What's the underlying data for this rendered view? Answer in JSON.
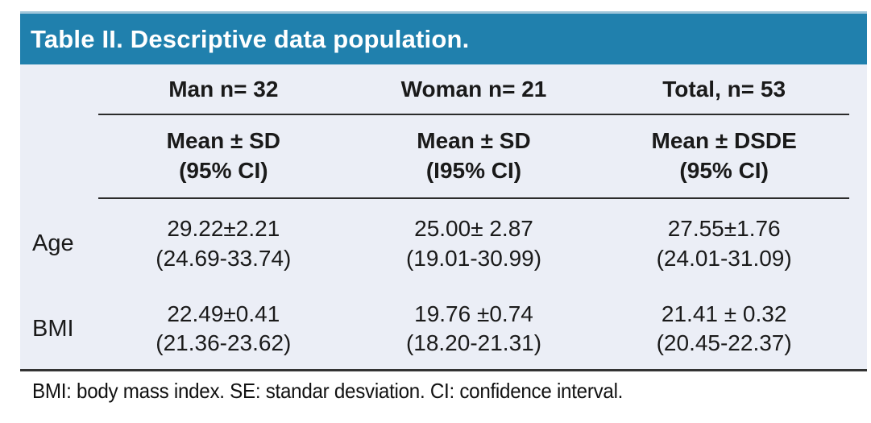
{
  "title": "Table II. Descriptive data population.",
  "colors": {
    "header_bg": "#2080AD",
    "header_text": "#FFFFFF",
    "body_bg": "#EBEEF6",
    "text": "#1A1A1A",
    "rule": "#2B2B2B"
  },
  "chart_data": {
    "type": "table",
    "title": "Table II. Descriptive data population.",
    "group_headers": [
      "Man n= 32",
      "Woman n= 21",
      "Total, n= 53"
    ],
    "sub_headers": [
      {
        "line1": "Mean ± SD",
        "line2": "(95% CI)"
      },
      {
        "line1": "Mean ± SD",
        "line2": "(I95% CI)"
      },
      {
        "line1": "Mean ± DSDE",
        "line2": "(95% CI)"
      }
    ],
    "rows": [
      {
        "label": "Age",
        "man": {
          "mean": "29.22±2.21",
          "ci": "(24.69-33.74)"
        },
        "woman": {
          "mean": "25.00± 2.87",
          "ci": "(19.01-30.99)"
        },
        "total": {
          "mean": "27.55±1.76",
          "ci": "(24.01-31.09)"
        }
      },
      {
        "label": "BMI",
        "man": {
          "mean": "22.49±0.41",
          "ci": "(21.36-23.62)"
        },
        "woman": {
          "mean": "19.76 ±0.74",
          "ci": "(18.20-21.31)"
        },
        "total": {
          "mean": "21.41 ± 0.32",
          "ci": "(20.45-22.37)"
        }
      }
    ],
    "footnote": "BMI: body mass index. SE: standar desviation. CI: confidence interval."
  }
}
